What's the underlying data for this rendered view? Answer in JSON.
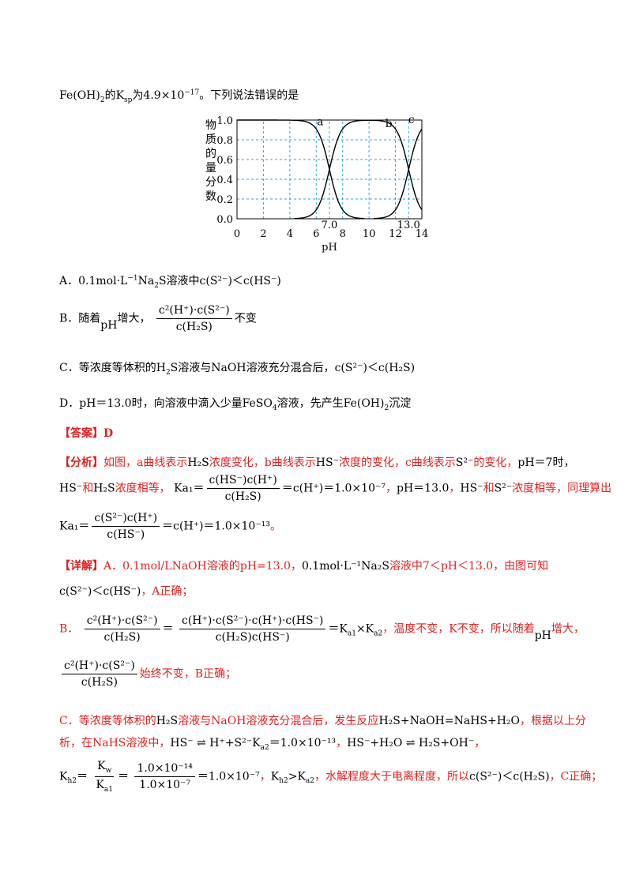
{
  "question": {
    "intro_suffix": "的K",
    "intro_ksp_sub": "sp",
    "intro_value": "为4.9×10",
    "intro_exp": "−17",
    "intro_tail": "。下列说法错误的是",
    "fe_oh2": "Fe(OH)",
    "fe_oh2_sub": "2"
  },
  "chart_data": {
    "type": "line",
    "ylabel_chars": [
      "物",
      "质",
      "的",
      "量",
      "分",
      "数"
    ],
    "xlabel": "pH",
    "xlim": [
      0,
      14
    ],
    "ylim": [
      0.0,
      1.0
    ],
    "x_ticks": [
      "0",
      "2",
      "4",
      "6",
      "8",
      "10",
      "12",
      "14"
    ],
    "y_ticks": [
      "0.0",
      "0.2",
      "0.4",
      "0.6",
      "0.8",
      "1.0"
    ],
    "annotations": [
      "7.0",
      "13.0"
    ],
    "grid": true,
    "series": [
      {
        "name": "a",
        "pka1": 7.0,
        "role": "H2S"
      },
      {
        "name": "b",
        "role": "HS-"
      },
      {
        "name": "c",
        "pka2": 13.0,
        "role": "S2-"
      }
    ]
  },
  "options": {
    "A": {
      "prefix": "A．",
      "text1": "0.1mol·L",
      "exp1": "−1",
      "text2": "Na",
      "sub2": "2",
      "text3": "S溶液中",
      "expr": "c(S²⁻)＜c(HS⁻)"
    },
    "B": {
      "prefix": "B．",
      "text1": "随着",
      "ph": "pH",
      "text2": "增大，",
      "num": "c²(H⁺)·c(S²⁻)",
      "den": "c(H₂S)",
      "text3": "不变"
    },
    "C": {
      "prefix": "C．",
      "text1": "等浓度等体积的H",
      "sub1": "2",
      "text2": "S溶液与",
      "naoh": "NaOH",
      "text3": "溶液充分混合后，",
      "expr": "c(S²⁻)＜c(H₂S)"
    },
    "D": {
      "prefix": "D．",
      "text1": "pH＝13.0时，向溶液中滴入少量",
      "feso4": "FeSO",
      "sub1": "4",
      "text2": "溶液，先产生",
      "feoh": "Fe(OH)",
      "sub2": "2",
      "text3": "沉淀"
    }
  },
  "answer": {
    "label": "【答案】",
    "value": "D"
  },
  "analysis": {
    "label": "【分析】",
    "l1a": "如图，a曲线表示",
    "l1b": "H₂S",
    "l1c": "浓度变化，b曲线表示",
    "l1d": "HS⁻",
    "l1e": "浓度的变化，c曲线表示",
    "l1f": "S²⁻",
    "l1g": "的变化，",
    "l1h": "pH＝7时，",
    "l2a": "HS⁻",
    "l2b": "和",
    "l2c": "H₂S",
    "l2d": "浓度相等，",
    "l2e": "Ka₁＝",
    "l2num": "c(HS⁻)c(H⁺)",
    "l2den": "c(H₂S)",
    "l2f": "＝c(H⁺)＝1.0×10⁻⁷",
    "l2g": "，",
    "l2h": "pH＝13.0",
    "l2i": "，",
    "l2j": "HS⁻",
    "l2k": "和",
    "l2l": "S²⁻",
    "l2m": "浓度相等，同理算出",
    "l3a": "Ka₁＝",
    "l3num": "c(S²⁻)c(H⁺)",
    "l3den": "c(HS⁻)",
    "l3b": "＝c(H⁺)＝1.0×10⁻¹³",
    "l3c": "。"
  },
  "detail": {
    "label": "【详解】",
    "l1a": "A．0.1mol/LNaOH溶液的pH=13.0，",
    "l1b": "0.1mol·L⁻¹Na₂S",
    "l1c": "溶液中7＜pH＜13.0，由图可知",
    "l2a": "c(S²⁻)＜c(HS⁻)",
    "l2b": "，A正确；",
    "b_prefix": "B．",
    "b_num1": "c²(H⁺)·c(S²⁻)",
    "b_den1": "c(H₂S)",
    "b_eq": "＝",
    "b_num2": "c(H⁺)·c(S²⁻)·c(H⁺)·c(HS⁻)",
    "b_den2": "c(H₂S)c(HS⁻)",
    "b_eq2": "＝K",
    "b_sub1": "a1",
    "b_times": "×K",
    "b_sub2": "a2",
    "b_text": "，温度不变，K不变，所以随着",
    "b_ph": "pH",
    "b_text2": "增大，",
    "b2_num": "c²(H⁺)·c(S²⁻)",
    "b2_den": "c(H₂S)",
    "b2_text": "始终不变，B正确；",
    "c1a": "C．等浓度等体积的",
    "c1b": "H₂S",
    "c1c": "溶液与NaOH溶液充分混合后，发生反应",
    "c1d": "H₂S+NaOH=NaHS+H₂O",
    "c1e": "，根据以上分",
    "c2a": "析，在NaHS溶液中，",
    "c2b": "HS⁻ ⇌ H⁺+S²⁻K",
    "c2b_sub": "a2",
    "c2c": "＝1.0×10⁻¹³",
    "c2d": "，",
    "c2e": "HS⁻+H₂O ⇌ H₂S+OH⁻",
    "c2f": "，",
    "c3a": "K",
    "c3a_sub": "h2",
    "c3b": "＝",
    "c3num1": "K",
    "c3num1_sub": "w",
    "c3den1": "K",
    "c3den1_sub": "a1",
    "c3c": "＝",
    "c3num2": "1.0×10⁻¹⁴",
    "c3den2": "1.0×10⁻⁷",
    "c3d": "＝1.0×10⁻⁷",
    "c3e": "，",
    "c3f": "K",
    "c3f_sub": "h2",
    "c3g": ">K",
    "c3g_sub": "a2",
    "c3h": "，水解程度大于电离程度，所以",
    "c3i": "c(S²⁻)＜c(H₂S)",
    "c3j": "，C正确；"
  }
}
